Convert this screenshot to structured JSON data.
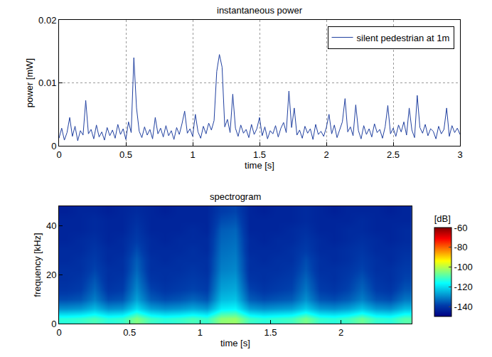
{
  "chart_data": [
    {
      "type": "line",
      "title": "instantaneous power",
      "x_label": "time [s]",
      "y_label": "power [mW]",
      "x": [
        0,
        0.02,
        0.04,
        0.06,
        0.08,
        0.1,
        0.12,
        0.14,
        0.16,
        0.18,
        0.2,
        0.22,
        0.24,
        0.26,
        0.28,
        0.3,
        0.32,
        0.34,
        0.36,
        0.38,
        0.4,
        0.42,
        0.44,
        0.46,
        0.48,
        0.5,
        0.52,
        0.54,
        0.56,
        0.58,
        0.6,
        0.62,
        0.64,
        0.66,
        0.68,
        0.7,
        0.72,
        0.74,
        0.76,
        0.78,
        0.8,
        0.82,
        0.84,
        0.86,
        0.88,
        0.9,
        0.92,
        0.94,
        0.96,
        0.98,
        1,
        1.02,
        1.04,
        1.06,
        1.08,
        1.1,
        1.12,
        1.14,
        1.16,
        1.18,
        1.2,
        1.22,
        1.24,
        1.26,
        1.28,
        1.3,
        1.32,
        1.34,
        1.36,
        1.38,
        1.4,
        1.42,
        1.44,
        1.46,
        1.48,
        1.5,
        1.52,
        1.54,
        1.56,
        1.58,
        1.6,
        1.62,
        1.64,
        1.66,
        1.68,
        1.7,
        1.72,
        1.74,
        1.76,
        1.78,
        1.8,
        1.82,
        1.84,
        1.86,
        1.88,
        1.9,
        1.92,
        1.94,
        1.96,
        1.98,
        2,
        2.02,
        2.04,
        2.06,
        2.08,
        2.1,
        2.12,
        2.14,
        2.16,
        2.18,
        2.2,
        2.22,
        2.24,
        2.26,
        2.28,
        2.3,
        2.32,
        2.34,
        2.36,
        2.38,
        2.4,
        2.42,
        2.44,
        2.46,
        2.48,
        2.5,
        2.52,
        2.54,
        2.56,
        2.58,
        2.6,
        2.62,
        2.64,
        2.66,
        2.68,
        2.7,
        2.72,
        2.74,
        2.76,
        2.78,
        2.8,
        2.82,
        2.84,
        2.86,
        2.88,
        2.9,
        2.92,
        2.94,
        2.96,
        2.98,
        3
      ],
      "series": [
        {
          "name": "silent pedestrian at 1m",
          "color": "#2040a0",
          "values": [
            0.0012,
            0.0028,
            0.0009,
            0.0021,
            0.0045,
            0.0015,
            0.0031,
            0.0008,
            0.0024,
            0.0017,
            0.0072,
            0.0019,
            0.0026,
            0.0011,
            0.0033,
            0.0014,
            0.0022,
            0.0009,
            0.0029,
            0.0016,
            0.0025,
            0.0012,
            0.0034,
            0.0018,
            0.0027,
            0.001,
            0.0038,
            0.0021,
            0.014,
            0.006,
            0.0023,
            0.0013,
            0.003,
            0.0017,
            0.0026,
            0.0011,
            0.0045,
            0.0019,
            0.0028,
            0.0014,
            0.0032,
            0.0016,
            0.0024,
            0.001,
            0.0029,
            0.0018,
            0.0035,
            0.0055,
            0.002,
            0.0027,
            0.0015,
            0.005,
            0.0022,
            0.0012,
            0.0031,
            0.0019,
            0.0036,
            0.0025,
            0.004,
            0.0118,
            0.0145,
            0.0125,
            0.003,
            0.0042,
            0.0021,
            0.0082,
            0.0028,
            0.0015,
            0.0033,
            0.002,
            0.0026,
            0.0013,
            0.0034,
            0.0018,
            0.0027,
            0.0045,
            0.0016,
            0.003,
            0.0011,
            0.0024,
            0.0019,
            0.0032,
            0.0014,
            0.0028,
            0.0037,
            0.0021,
            0.0087,
            0.0029,
            0.006,
            0.0017,
            0.0025,
            0.0012,
            0.0031,
            0.002,
            0.0027,
            0.001,
            0.0034,
            0.0018,
            0.0023,
            0.0015,
            0.0029,
            0.005,
            0.0019,
            0.0033,
            0.0013,
            0.0026,
            0.0038,
            0.0075,
            0.0022,
            0.003,
            0.0016,
            0.0065,
            0.0024,
            0.0011,
            0.0032,
            0.0018,
            0.0027,
            0.0014,
            0.0035,
            0.0021,
            0.0026,
            0.0012,
            0.003,
            0.0064,
            0.0019,
            0.0028,
            0.0015,
            0.0033,
            0.0022,
            0.0038,
            0.0017,
            0.006,
            0.0025,
            0.0013,
            0.008,
            0.0029,
            0.002,
            0.0034,
            0.0016,
            0.0027,
            0.0023,
            0.0011,
            0.0031,
            0.0019,
            0.0026,
            0.006,
            0.0015,
            0.0032,
            0.0021,
            0.0028,
            0.0018
          ]
        }
      ],
      "xlim": [
        0,
        3
      ],
      "ylim": [
        0,
        0.02
      ],
      "xticks": [
        0,
        0.5,
        1,
        1.5,
        2,
        2.5,
        3
      ],
      "yticks": [
        0,
        0.01,
        0.02
      ],
      "grid": true,
      "legend": "upper right"
    },
    {
      "type": "heatmap",
      "title": "spectrogram",
      "x_label": "time [s]",
      "y_label": "frequency [kHz]",
      "x": [
        0.05,
        0.15,
        0.25,
        0.35,
        0.45,
        0.55,
        0.65,
        0.75,
        0.85,
        0.95,
        1.05,
        1.15,
        1.25,
        1.35,
        1.45,
        1.55,
        1.65,
        1.75,
        1.85,
        1.95,
        2.05,
        2.15,
        2.25,
        2.35,
        2.45
      ],
      "y": [
        2,
        6,
        10,
        14,
        18,
        22,
        26,
        30,
        34,
        38,
        42,
        46
      ],
      "z": [
        [
          -113,
          -112,
          -110,
          -113,
          -112,
          -105,
          -111,
          -113,
          -112,
          -110,
          -112,
          -104,
          -103,
          -111,
          -113,
          -112,
          -111,
          -106,
          -112,
          -113,
          -111,
          -107,
          -112,
          -113,
          -109
        ],
        [
          -129,
          -128,
          -124,
          -129,
          -128,
          -120,
          -127,
          -129,
          -128,
          -126,
          -128,
          -118,
          -117,
          -127,
          -129,
          -128,
          -127,
          -122,
          -128,
          -129,
          -127,
          -123,
          -128,
          -129,
          -124
        ],
        [
          -137,
          -136,
          -131,
          -137,
          -136,
          -127,
          -135,
          -137,
          -136,
          -134,
          -136,
          -124,
          -123,
          -135,
          -137,
          -136,
          -135,
          -129,
          -136,
          -137,
          -135,
          -131,
          -136,
          -137,
          -132
        ],
        [
          -140,
          -139,
          -134,
          -140,
          -139,
          -130,
          -138,
          -140,
          -139,
          -138,
          -139,
          -127,
          -126,
          -138,
          -140,
          -139,
          -138,
          -132,
          -139,
          -140,
          -138,
          -134,
          -139,
          -140,
          -136
        ],
        [
          -141,
          -140,
          -136,
          -141,
          -140,
          -132,
          -140,
          -141,
          -140,
          -139,
          -140,
          -129,
          -128,
          -140,
          -141,
          -140,
          -139,
          -134,
          -140,
          -141,
          -139,
          -136,
          -140,
          -141,
          -138
        ],
        [
          -141,
          -141,
          -138,
          -141,
          -141,
          -134,
          -141,
          -141,
          -141,
          -140,
          -141,
          -131,
          -130,
          -141,
          -141,
          -141,
          -140,
          -136,
          -141,
          -141,
          -140,
          -138,
          -141,
          -141,
          -139
        ],
        [
          -142,
          -141,
          -139,
          -142,
          -141,
          -135,
          -141,
          -142,
          -141,
          -141,
          -141,
          -132,
          -131,
          -141,
          -142,
          -141,
          -141,
          -137,
          -141,
          -142,
          -141,
          -139,
          -141,
          -142,
          -140
        ],
        [
          -142,
          -142,
          -140,
          -142,
          -142,
          -137,
          -142,
          -142,
          -142,
          -141,
          -142,
          -133,
          -132,
          -142,
          -142,
          -142,
          -141,
          -139,
          -142,
          -142,
          -141,
          -140,
          -142,
          -142,
          -141
        ],
        [
          -143,
          -142,
          -141,
          -143,
          -142,
          -139,
          -142,
          -143,
          -142,
          -142,
          -142,
          -134,
          -133,
          -142,
          -143,
          -142,
          -142,
          -140,
          -142,
          -143,
          -142,
          -141,
          -142,
          -143,
          -142
        ],
        [
          -143,
          -143,
          -142,
          -143,
          -143,
          -140,
          -143,
          -143,
          -143,
          -142,
          -143,
          -135,
          -134,
          -143,
          -143,
          -143,
          -142,
          -141,
          -143,
          -143,
          -142,
          -142,
          -143,
          -143,
          -142
        ],
        [
          -143,
          -143,
          -142,
          -143,
          -143,
          -141,
          -143,
          -143,
          -143,
          -143,
          -143,
          -137,
          -136,
          -143,
          -143,
          -143,
          -143,
          -142,
          -143,
          -143,
          -143,
          -142,
          -143,
          -143,
          -143
        ],
        [
          -144,
          -143,
          -143,
          -144,
          -143,
          -142,
          -143,
          -144,
          -143,
          -143,
          -143,
          -139,
          -138,
          -143,
          -144,
          -143,
          -143,
          -142,
          -143,
          -144,
          -143,
          -143,
          -143,
          -144,
          -143
        ]
      ],
      "xlim": [
        0,
        2.5
      ],
      "ylim": [
        0,
        48
      ],
      "xticks": [
        0,
        0.5,
        1,
        1.5,
        2
      ],
      "yticks": [
        0,
        20,
        40
      ],
      "color": "Jet",
      "color_title": "[dB]",
      "color_range": [
        -150,
        -60
      ],
      "color_ticks": [
        -60,
        -80,
        -100,
        -120,
        -140
      ],
      "grid": false
    }
  ]
}
